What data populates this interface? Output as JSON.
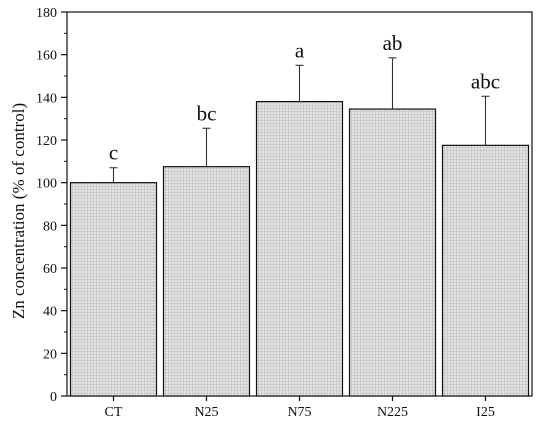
{
  "chart_data": {
    "type": "bar",
    "categories": [
      "CT",
      "N25",
      "N75",
      "N225",
      "I25"
    ],
    "values": [
      100,
      107.5,
      138,
      134.5,
      117.5
    ],
    "errors": [
      7,
      18,
      17,
      24,
      23
    ],
    "significance": [
      "c",
      "bc",
      "a",
      "ab",
      "abc"
    ],
    "title": "",
    "xlabel": "",
    "ylabel": "Zn concentration (% of control)",
    "ylim": [
      0,
      180
    ],
    "yticks": [
      0,
      20,
      40,
      60,
      80,
      100,
      120,
      140,
      160,
      180
    ],
    "grid": false,
    "bar_fill": "#dcdcdc",
    "bar_stroke": "#111111"
  }
}
